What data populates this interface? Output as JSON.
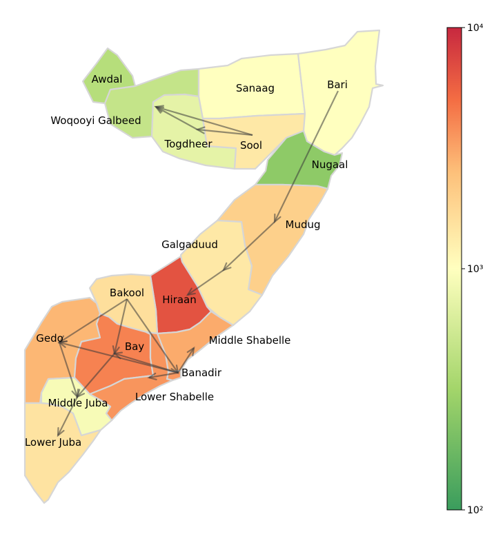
{
  "colors": {
    "region_border": "#d6d6d6",
    "arrow": "#3a3a3a",
    "colormap": [
      "#3a9d5d",
      "#a3d56a",
      "#ffffbf",
      "#fdc07a",
      "#f46d43",
      "#c7283f"
    ]
  },
  "colorbar": {
    "scale": "log",
    "min": 100,
    "max": 10000,
    "ticks": [
      {
        "value": 100,
        "label": "10²"
      },
      {
        "value": 1000,
        "label": "10³"
      },
      {
        "value": 10000,
        "label": "10⁴"
      }
    ]
  },
  "regions": [
    {
      "id": "awdal",
      "label": "Awdal",
      "value": 400
    },
    {
      "id": "woqooyi",
      "label": "Woqooyi Galbeed",
      "value": 480
    },
    {
      "id": "togdheer",
      "label": "Togdheer",
      "value": 720
    },
    {
      "id": "sanaag",
      "label": "Sanaag",
      "value": 1000
    },
    {
      "id": "sool",
      "label": "Sool",
      "value": 1400
    },
    {
      "id": "bari",
      "label": "Bari",
      "value": 1000
    },
    {
      "id": "nugaal",
      "label": "Nugaal",
      "value": 250
    },
    {
      "id": "mudug",
      "label": "Mudug",
      "value": 2000
    },
    {
      "id": "galgaduud",
      "label": "Galgaduud",
      "value": 1400
    },
    {
      "id": "hiraan",
      "label": "Hiraan",
      "value": 6500
    },
    {
      "id": "bakool",
      "label": "Bakool",
      "value": 1600
    },
    {
      "id": "gedo",
      "label": "Gedo",
      "value": 2700
    },
    {
      "id": "bay",
      "label": "Bay",
      "value": 4200
    },
    {
      "id": "middle_shabelle",
      "label": "Middle Shabelle",
      "value": 3000
    },
    {
      "id": "banadir",
      "label": "Banadir",
      "value": 3500
    },
    {
      "id": "lower_shabelle",
      "label": "Lower Shabelle",
      "value": 3600
    },
    {
      "id": "middle_juba",
      "label": "Middle Juba",
      "value": 900
    },
    {
      "id": "lower_juba",
      "label": "Lower Juba",
      "value": 1500
    }
  ],
  "flows": [
    {
      "from": "Bari",
      "to": "Mudug"
    },
    {
      "from": "Mudug",
      "to": "Galgaduud"
    },
    {
      "from": "Galgaduud",
      "to": "Hiraan"
    },
    {
      "from": "Sool",
      "to": "Woqooyi Galbeed"
    },
    {
      "from": "Sool",
      "to": "Togdheer"
    },
    {
      "from": "Togdheer",
      "to": "Woqooyi Galbeed"
    },
    {
      "from": "Bakool",
      "to": "Gedo"
    },
    {
      "from": "Bakool",
      "to": "Bay"
    },
    {
      "from": "Bakool",
      "to": "Banadir"
    },
    {
      "from": "Bay",
      "to": "Middle Juba"
    },
    {
      "from": "Gedo",
      "to": "Middle Juba"
    },
    {
      "from": "Banadir",
      "to": "Gedo"
    },
    {
      "from": "Banadir",
      "to": "Bay"
    },
    {
      "from": "Banadir",
      "to": "Middle Shabelle"
    },
    {
      "from": "Banadir",
      "to": "Lower Shabelle"
    },
    {
      "from": "Middle Juba",
      "to": "Lower Juba"
    }
  ]
}
